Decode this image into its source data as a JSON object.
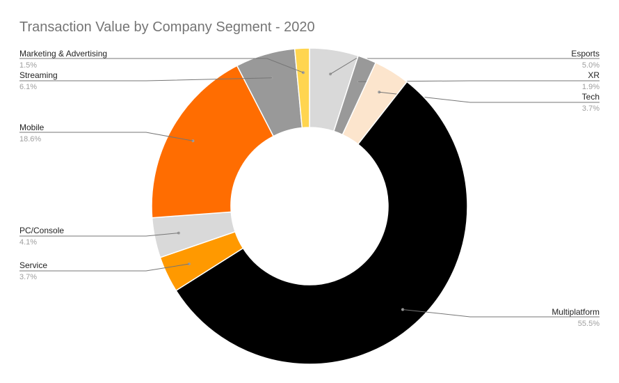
{
  "chart_data": {
    "type": "pie",
    "donut": true,
    "title": "Transaction Value by Company Segment - 2020",
    "slices": [
      {
        "label": "Esports",
        "value": 5.0,
        "pct_label": "5.0%",
        "color": "#d9d9d9"
      },
      {
        "label": "XR",
        "value": 1.9,
        "pct_label": "1.9%",
        "color": "#999999"
      },
      {
        "label": "Tech",
        "value": 3.7,
        "pct_label": "3.7%",
        "color": "#fce5cd"
      },
      {
        "label": "Multiplatform",
        "value": 55.5,
        "pct_label": "55.5%",
        "color": "#000000"
      },
      {
        "label": "Service",
        "value": 3.7,
        "pct_label": "3.7%",
        "color": "#ff9900"
      },
      {
        "label": "PC/Console",
        "value": 4.1,
        "pct_label": "4.1%",
        "color": "#d9d9d9"
      },
      {
        "label": "Mobile",
        "value": 18.6,
        "pct_label": "18.6%",
        "color": "#ff6d01"
      },
      {
        "label": "Streaming",
        "value": 6.1,
        "pct_label": "6.1%",
        "color": "#999999"
      },
      {
        "label": "Marketing & Advertising",
        "value": 1.5,
        "pct_label": "1.5%",
        "color": "#ffd54f"
      }
    ]
  }
}
